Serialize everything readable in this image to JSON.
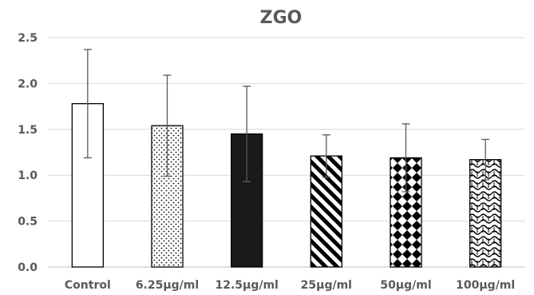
{
  "chart_data": {
    "type": "bar",
    "title": "ZGO",
    "xlabel": "",
    "ylabel": "",
    "ylim": [
      0,
      2.5
    ],
    "yticks": [
      "0.0",
      "0.5",
      "1.0",
      "1.5",
      "2.0",
      "2.5"
    ],
    "grid": true,
    "legend": "none",
    "categories": [
      "Control",
      "6.25μg/ml",
      "12.5μg/ml",
      "25μg/ml",
      "50μg/ml",
      "100μg/ml"
    ],
    "values": [
      1.78,
      1.54,
      1.45,
      1.21,
      1.19,
      1.17
    ],
    "error_bars": [
      0.59,
      0.55,
      0.52,
      0.23,
      0.37,
      0.22
    ],
    "bar_fills": [
      "white",
      "dots",
      "solid-black",
      "diagonal-stripes",
      "diamond-checker",
      "wave-lattice"
    ]
  }
}
